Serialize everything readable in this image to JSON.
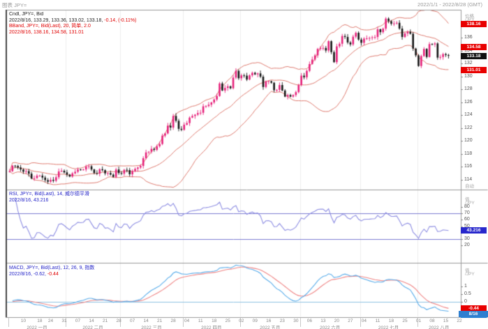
{
  "window": {
    "title": "图表 JPY=",
    "range": "2022/1/1 - 2022/8/28 (GMT)"
  },
  "main_panel": {
    "header_line1": "Cndl, JPY=, Bid",
    "header_line2_black": "2022/8/16, 133.29, 133.36, 133.02, 133.18,",
    "header_line2_red": " -0.14, (-0.11%)",
    "header_line3": "BBand, JPY=, Bid(Last), 20, 简单, 2.0",
    "header_line4": "2022/8/16, 138.16, 134.58, 131.01",
    "axis_top": "价格",
    "axis_unit": "/JPY",
    "axis_bottom": "自动",
    "y_ticks": [
      136,
      134,
      132,
      130,
      128,
      126,
      124,
      122,
      120,
      118,
      116,
      114
    ],
    "badges": {
      "bb_upper": "138.16",
      "bb_mid": "134.58",
      "price": "133.18",
      "bb_lower": "131.01"
    }
  },
  "rsi_panel": {
    "header_line1": "RSI, JPY=, Bid(Last), 14, 威尔德平滑",
    "header_line2": "2022/8/16, 43.216",
    "axis_top": "值",
    "axis_unit": "/JPY",
    "y_ticks": [
      80,
      70,
      60,
      50,
      40,
      30,
      20
    ],
    "badge": "43.216"
  },
  "macd_panel": {
    "header_line1": "MACD, JPY=, Bid(Last), 12, 26, 9, 指数",
    "header_line2_blue": "2022/8/16, -0.62,",
    "header_line2_red": " -0.44",
    "axis_top": "值",
    "axis_unit": "/JPY",
    "y_ticks": [
      1,
      0.5,
      0
    ],
    "badge_signal": "-0.44",
    "badge_macd": "-0.62"
  },
  "time_axis": {
    "date_badge": "8/16",
    "months": [
      {
        "start": 0,
        "label": "2022 一月"
      },
      {
        "start": 21,
        "label": "2022 二月"
      },
      {
        "start": 41,
        "label": "2022 三月"
      },
      {
        "start": 64,
        "label": "2022 四月"
      },
      {
        "start": 85,
        "label": "2022 五月"
      },
      {
        "start": 107,
        "label": "2022 六月"
      },
      {
        "start": 129,
        "label": "2022 七月"
      },
      {
        "start": 150,
        "label": "2022 八月"
      }
    ],
    "end_slot": 166,
    "day_ticks": [
      {
        "i": 5,
        "d": "10"
      },
      {
        "i": 11,
        "d": "18"
      },
      {
        "i": 15,
        "d": "24"
      },
      {
        "i": 20,
        "d": "31"
      },
      {
        "i": 25,
        "d": "07"
      },
      {
        "i": 30,
        "d": "14"
      },
      {
        "i": 35,
        "d": "21"
      },
      {
        "i": 40,
        "d": "28"
      },
      {
        "i": 45,
        "d": "07"
      },
      {
        "i": 50,
        "d": "14"
      },
      {
        "i": 55,
        "d": "21"
      },
      {
        "i": 60,
        "d": "28"
      },
      {
        "i": 65,
        "d": "04"
      },
      {
        "i": 70,
        "d": "11"
      },
      {
        "i": 75,
        "d": "18"
      },
      {
        "i": 80,
        "d": "25"
      },
      {
        "i": 85,
        "d": "02"
      },
      {
        "i": 90,
        "d": "09"
      },
      {
        "i": 95,
        "d": "16"
      },
      {
        "i": 100,
        "d": "23"
      },
      {
        "i": 105,
        "d": "30"
      },
      {
        "i": 110,
        "d": "06"
      },
      {
        "i": 115,
        "d": "13"
      },
      {
        "i": 120,
        "d": "20"
      },
      {
        "i": 125,
        "d": "27"
      },
      {
        "i": 130,
        "d": "04"
      },
      {
        "i": 135,
        "d": "11"
      },
      {
        "i": 140,
        "d": "18"
      },
      {
        "i": 145,
        "d": "25"
      },
      {
        "i": 150,
        "d": "01"
      },
      {
        "i": 155,
        "d": "08"
      },
      {
        "i": 160,
        "d": "15"
      },
      {
        "i": 165,
        "d": "22"
      }
    ]
  },
  "chart_data": {
    "type": "candlestick",
    "symbol": "JPY=",
    "interval": "daily",
    "title": "Cndl, JPY=, Bid with BBand(20, simple, 2.0); sub-panels RSI(14 Wilder) and MACD(12,26,9 exp)",
    "x_start": "2022-01-03",
    "x_end": "2022-08-16",
    "ylim": [
      112.3,
      140.3
    ],
    "closes": [
      115.3,
      116.15,
      116.1,
      115.85,
      115.55,
      115.2,
      115.3,
      114.9,
      114.15,
      114.2,
      114.6,
      114.6,
      114.3,
      113.9,
      113.65,
      113.95,
      113.8,
      114.35,
      115.25,
      115.35,
      115.1,
      114.75,
      114.45,
      114.95,
      115.2,
      115.55,
      115.5,
      115.55,
      116.0,
      116.05,
      115.55,
      115.0,
      114.9,
      115.6,
      115.45,
      114.95,
      115.0,
      114.75,
      114.4,
      115.55,
      115.0,
      114.9,
      115.5,
      115.45,
      114.8,
      115.3,
      115.65,
      115.85,
      116.1,
      117.3,
      118.2,
      118.3,
      118.75,
      118.6,
      119.15,
      119.5,
      120.8,
      121.15,
      122.35,
      122.05,
      123.85,
      123.1,
      121.85,
      121.7,
      122.5,
      122.75,
      123.6,
      123.85,
      124.05,
      124.3,
      124.35,
      125.35,
      125.4,
      125.6,
      125.95,
      126.4,
      126.95,
      128.9,
      127.8,
      128.2,
      128.45,
      128.15,
      129.8,
      130.85,
      129.7,
      130.15,
      130.1,
      129.5,
      130.15,
      130.55,
      130.3,
      130.45,
      129.95,
      128.35,
      129.2,
      129.25,
      129.0,
      127.85,
      127.9,
      128.65,
      127.8,
      126.85,
      127.1,
      126.85,
      127.1,
      127.55,
      128.65,
      130.1,
      129.85,
      130.85,
      131.9,
      132.6,
      133.25,
      134.25,
      134.4,
      134.4,
      134.0,
      135.45,
      133.75,
      132.2,
      134.65,
      135.05,
      136.25,
      136.1,
      135.25,
      134.95,
      136.15,
      136.75,
      135.7,
      135.2,
      135.85,
      135.9,
      135.95,
      136.05,
      136.1,
      137.3,
      136.85,
      137.4,
      138.95,
      138.55,
      138.15,
      138.2,
      138.3,
      137.4,
      136.1,
      136.65,
      136.9,
      136.6,
      134.3,
      133.25,
      131.6,
      133.15,
      134.25,
      133.0,
      135.0,
      134.95,
      135.1,
      132.9,
      133.0,
      133.45,
      133.3,
      133.18
    ],
    "last_bar": {
      "date": "2022/8/16",
      "open": 133.29,
      "high": 133.36,
      "low": 133.02,
      "close": 133.18,
      "net": -0.14,
      "pct": "-0.11%"
    },
    "overlays": [
      {
        "type": "bollinger",
        "period": 20,
        "mult": 2.0,
        "ma": "简单",
        "last": {
          "upper": 138.16,
          "mid": 134.58,
          "lower": 131.01
        }
      }
    ],
    "sub_charts": [
      {
        "type": "line",
        "name": "RSI",
        "period": 14,
        "smoothing": "威尔德平滑",
        "levels": [
          70,
          30
        ],
        "last": 43.216,
        "range": [
          0,
          100
        ]
      },
      {
        "type": "line",
        "name": "MACD",
        "params": [
          12,
          26,
          9
        ],
        "method": "指数",
        "last": {
          "macd": -0.62,
          "signal": -0.44
        },
        "zero_line": 0
      }
    ],
    "colors": {
      "up": "#e6217a",
      "down": "#151515",
      "bband": "#de7b70",
      "rsi": "#8d8de2",
      "rsi_levels": "#7b7bd0",
      "macd": "#58acea",
      "macd_signal": "#ef8585",
      "macd_zero": "#8fc2e2",
      "badge_red": "#e80000",
      "badge_black": "#111111",
      "badge_navy": "#2828cc",
      "badge_blue": "#1e7fd8",
      "badge_date": "#2f7fd0",
      "grid": "#ececec",
      "border": "#9a9a9a",
      "left_edge": "#444444"
    }
  }
}
